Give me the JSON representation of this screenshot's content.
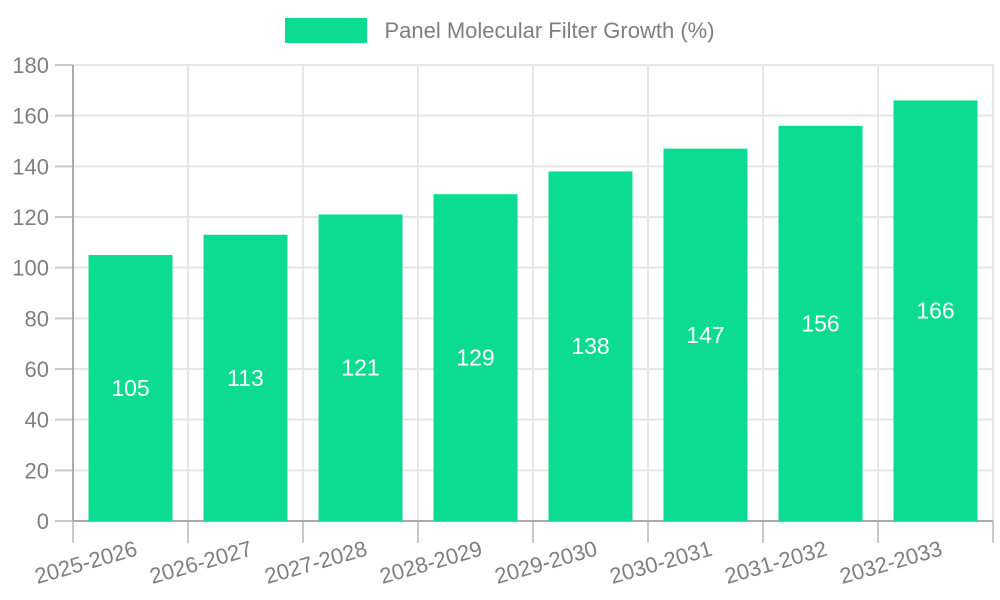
{
  "colors": {
    "bar": "#0bdc92",
    "bar_label": "#ffffff",
    "axis_line": "#ababab",
    "tick_mark": "#c9c9c9",
    "grid_line": "#e6e6e6",
    "text": "#7f7f7f",
    "background": "#ffffff"
  },
  "legend": {
    "label": "Panel Molecular Filter Growth (%)"
  },
  "chart_data": {
    "type": "bar",
    "title": "Panel Molecular Filter Growth (%)",
    "categories": [
      "2025-2026",
      "2026-2027",
      "2027-2028",
      "2028-2029",
      "2029-2030",
      "2030-2031",
      "2031-2032",
      "2032-2033"
    ],
    "values": [
      105,
      113,
      121,
      129,
      138,
      147,
      156,
      166
    ],
    "xlabel": "",
    "ylabel": "",
    "ylim": [
      0,
      180
    ],
    "yticks": [
      0,
      20,
      40,
      60,
      80,
      100,
      120,
      140,
      160,
      180
    ],
    "grid": true,
    "legend_position": "top-center",
    "value_labels": "inside-center",
    "x_label_rotation_deg": -16
  }
}
